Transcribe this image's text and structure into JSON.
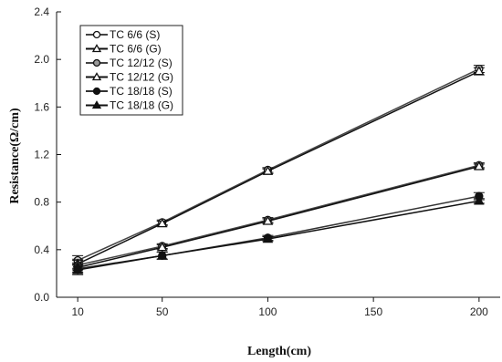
{
  "chart_data": {
    "type": "line",
    "xlabel": "Length(cm)",
    "ylabel": "Resistance(Ω/cm)",
    "x": [
      10,
      50,
      100,
      200
    ],
    "xticks": [
      10,
      50,
      100,
      150,
      200
    ],
    "yticks": [
      "0.0",
      "0.4",
      "0.8",
      "1.2",
      "1.6",
      "2.0",
      "2.4"
    ],
    "xlim": [
      0,
      210
    ],
    "ylim": [
      0,
      2.4
    ],
    "grid": false,
    "legend_position": "top-left",
    "series": [
      {
        "name": "TC 6/6 (S)",
        "marker": "circle-open",
        "values": [
          0.31,
          0.63,
          1.07,
          1.92
        ],
        "errors": [
          0.04,
          0.02,
          0.02,
          0.03
        ]
      },
      {
        "name": "TC 6/6 (G)",
        "marker": "triangle-open",
        "values": [
          0.28,
          0.62,
          1.06,
          1.9
        ],
        "errors": [
          0.04,
          0.02,
          0.02,
          0.03
        ]
      },
      {
        "name": "TC 12/12 (S)",
        "marker": "circle-gray",
        "values": [
          0.27,
          0.43,
          0.65,
          1.11
        ],
        "errors": [
          0.04,
          0.02,
          0.02,
          0.02
        ]
      },
      {
        "name": "TC 12/12 (G)",
        "marker": "triangle-gray",
        "values": [
          0.25,
          0.42,
          0.64,
          1.1
        ],
        "errors": [
          0.04,
          0.02,
          0.02,
          0.02
        ]
      },
      {
        "name": "TC 18/18 (S)",
        "marker": "circle-filled",
        "values": [
          0.24,
          0.35,
          0.5,
          0.85
        ],
        "errors": [
          0.04,
          0.03,
          0.02,
          0.03
        ]
      },
      {
        "name": "TC 18/18 (G)",
        "marker": "triangle-filled",
        "values": [
          0.23,
          0.35,
          0.49,
          0.81
        ],
        "errors": [
          0.04,
          0.03,
          0.02,
          0.02
        ]
      }
    ]
  }
}
